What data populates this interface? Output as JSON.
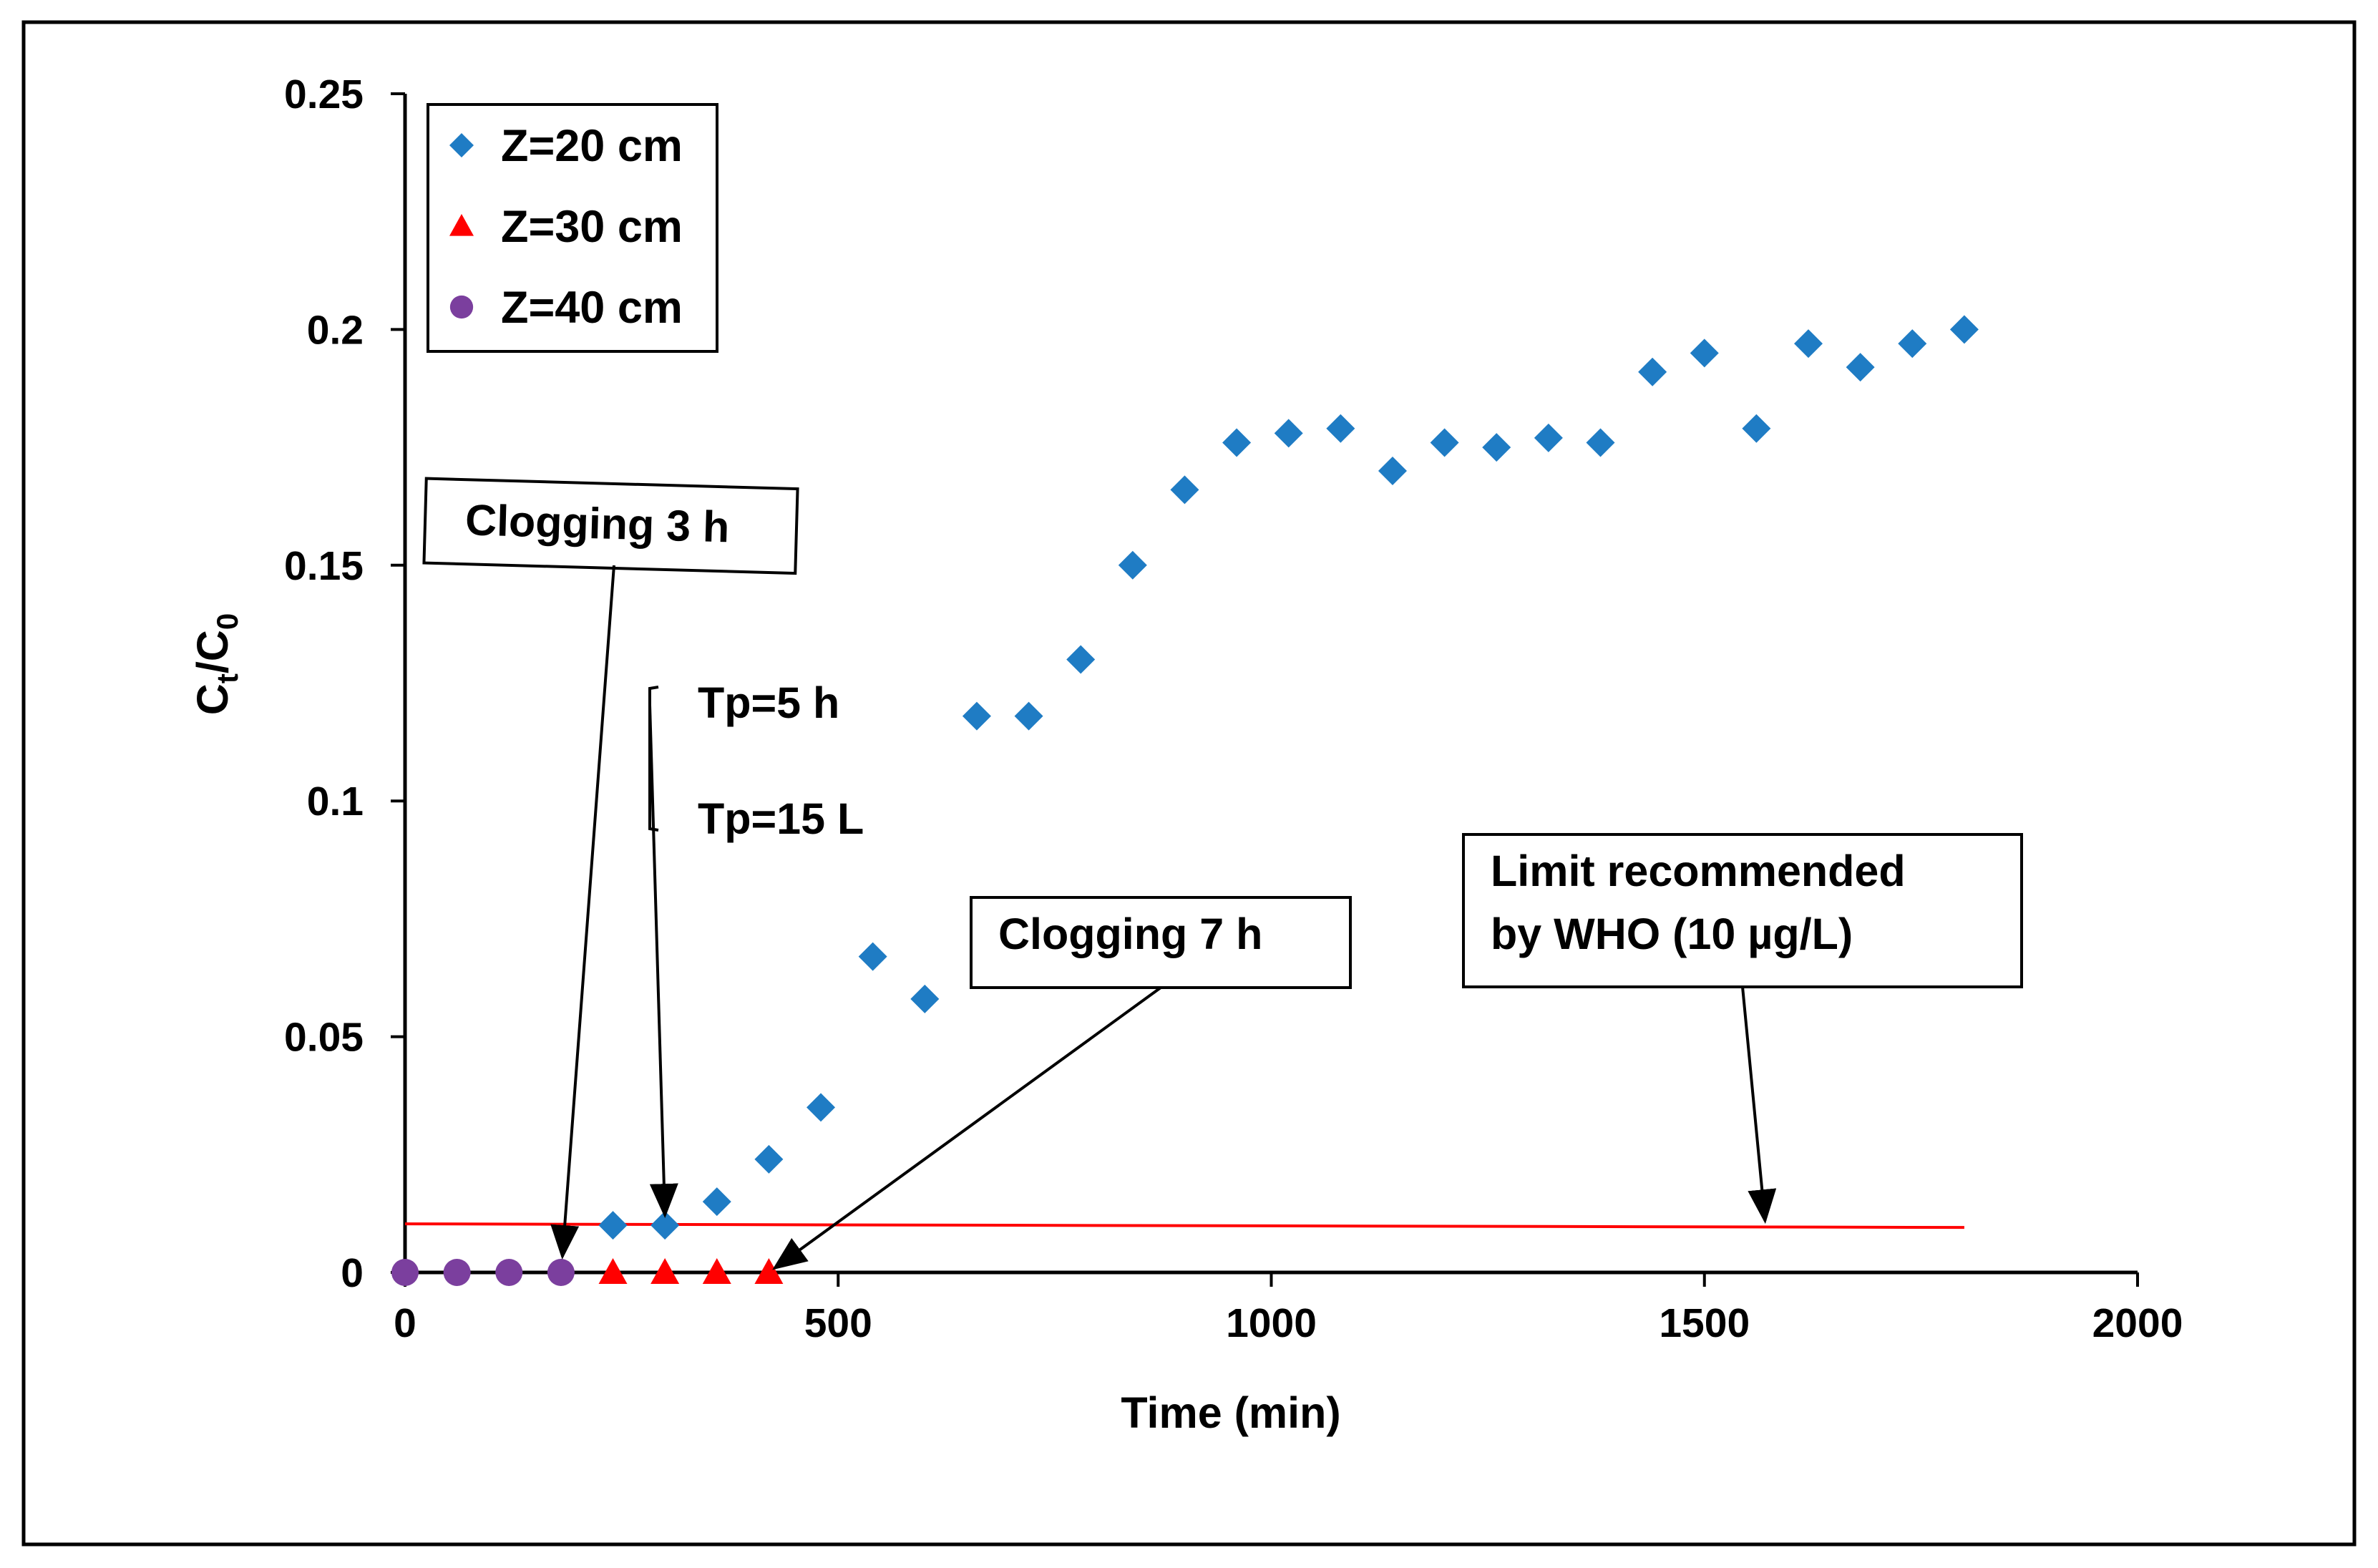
{
  "chart_data": {
    "type": "scatter",
    "title": "",
    "xlabel": "Time (min)",
    "ylabel": {
      "base": "C",
      "sub1": "t",
      "slash": "/C",
      "sub2": "0"
    },
    "xlim": [
      0,
      2000
    ],
    "ylim": [
      0,
      0.25
    ],
    "x_ticks": [
      0,
      500,
      1000,
      1500,
      2000
    ],
    "x_tick_labels": [
      "0",
      "500",
      "1000",
      "1500",
      "2000"
    ],
    "y_ticks": [
      0,
      0.05,
      0.1,
      0.15,
      0.2,
      0.25
    ],
    "y_tick_labels": [
      "0",
      "0.05",
      "0.1",
      "0.15",
      "0.2",
      "0.25"
    ],
    "grid": false,
    "legend_position": "top-left",
    "series": [
      {
        "name": "Z=20 cm",
        "marker": "diamond",
        "color": "#1F7CC4",
        "x": [
          240,
          300,
          360,
          420,
          480,
          540,
          600,
          660,
          720,
          780,
          840,
          900,
          960,
          1020,
          1080,
          1140,
          1200,
          1260,
          1320,
          1380,
          1440,
          1500,
          1560,
          1620,
          1680,
          1740,
          1800
        ],
        "y": [
          0.01,
          0.01,
          0.015,
          0.024,
          0.035,
          0.067,
          0.058,
          0.118,
          0.118,
          0.13,
          0.15,
          0.166,
          0.176,
          0.178,
          0.179,
          0.17,
          0.176,
          0.175,
          0.177,
          0.176,
          0.191,
          0.195,
          0.179,
          0.197,
          0.192,
          0.197,
          0.2
        ]
      },
      {
        "name": "Z=30 cm",
        "marker": "triangle",
        "color": "#FF0000",
        "x": [
          240,
          300,
          360,
          420
        ],
        "y": [
          0,
          0,
          0,
          0
        ]
      },
      {
        "name": "Z=40 cm",
        "marker": "circle",
        "color": "#7B3F9E",
        "x": [
          0,
          60,
          120,
          180
        ],
        "y": [
          0,
          0,
          0,
          0
        ]
      }
    ],
    "reference_line": {
      "y": 0.01,
      "x_range": [
        0,
        1800
      ],
      "color": "#FF0000"
    },
    "annotations": [
      {
        "text": "Clogging 3 h",
        "lines": [
          "Clogging 3 h"
        ],
        "boxed": true,
        "points_to": [
          180,
          0
        ]
      },
      {
        "text": "Tp=5 h",
        "lines": [
          "Tp=5 h"
        ],
        "boxed": false,
        "points_to": [
          300,
          0.01
        ]
      },
      {
        "text": "Tp=15 L",
        "lines": [
          "Tp=15 L"
        ],
        "boxed": false
      },
      {
        "text": "Clogging 7 h",
        "lines": [
          "Clogging 7 h"
        ],
        "boxed": true,
        "points_to": [
          420,
          0
        ]
      },
      {
        "text": "Limit recommended by WHO (10 µg/L)",
        "lines": [
          "Limit recommended",
          "by WHO (10 µg/L)"
        ],
        "boxed": true,
        "points_to": [
          1570,
          0.01
        ]
      }
    ]
  }
}
